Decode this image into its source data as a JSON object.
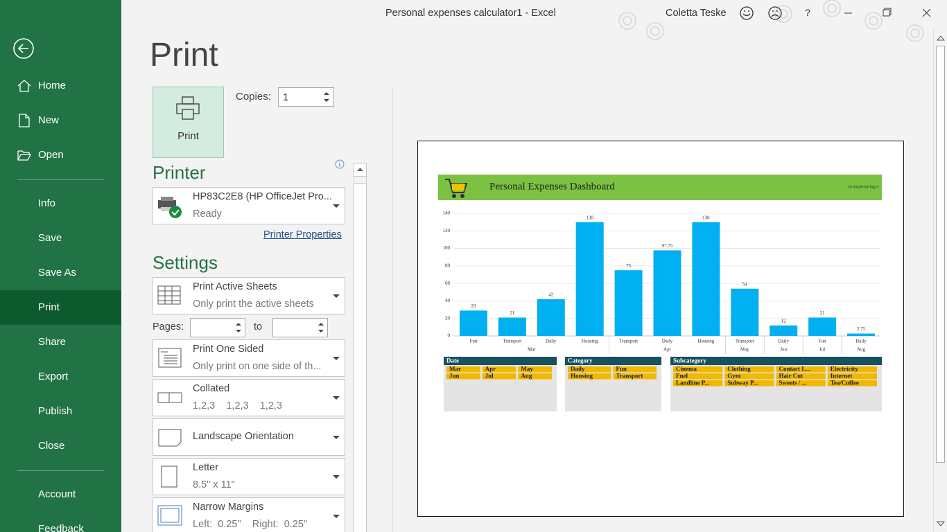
{
  "title_bar": {
    "document": "Personal expenses calculator1  -  Excel",
    "user": "Coletta Teske",
    "help": "?"
  },
  "nav": [
    "Home",
    "New",
    "Open",
    "Info",
    "Save",
    "Save As",
    "Print",
    "Share",
    "Export",
    "Publish",
    "Close",
    "Account",
    "Feedback"
  ],
  "print_panel": {
    "heading": "Print",
    "print_button": "Print",
    "copies": {
      "label": "Copies:",
      "value": 1
    },
    "printer": {
      "heading": "Printer",
      "name": "HP83C2E8 (HP OfficeJet Pro...",
      "status": "Ready",
      "properties_link": "Printer Properties"
    },
    "settings": {
      "heading": "Settings",
      "pages": {
        "label": "Pages:",
        "to": "to"
      },
      "options": [
        {
          "title": "Print Active Sheets",
          "subtitle": "Only print the active sheets"
        },
        {
          "title": "Print One Sided",
          "subtitle": "Only print on one side of th..."
        },
        {
          "title": "Collated",
          "subtitle": "1,2,3    1,2,3    1,2,3"
        },
        {
          "title": "Landscape Orientation"
        },
        {
          "title": "Letter",
          "subtitle": "8.5\" x 11\""
        },
        {
          "title": "Narrow Margins",
          "subtitle": "Left:  0.25\"    Right:  0.25\""
        }
      ]
    }
  },
  "dashboard": {
    "title": "Personal Expenses Dashboard",
    "link": "to expense log >",
    "slicers": [
      {
        "title": "Date",
        "items": [
          "Mar",
          "Apr",
          "May",
          "Jun",
          "Jul",
          "Aug"
        ]
      },
      {
        "title": "Category",
        "items": [
          "Daily",
          "Fun",
          "Housing",
          "Transport"
        ]
      },
      {
        "title": "Subcategory",
        "items": [
          "Cinema",
          "Clothing",
          "Contact L...",
          "Electricity",
          "Fuel",
          "Gym",
          "Hair Cut",
          "Internet",
          "Landline P...",
          "Subway P...",
          "Sweets / ...",
          "Tea/Coffee"
        ]
      }
    ]
  },
  "chart_data": {
    "type": "bar",
    "categories": [
      "Fun",
      "Transport",
      "Daily",
      "Housing",
      "Transport",
      "Daily",
      "Housing",
      "Transport",
      "Daily",
      "Fun",
      "Daily"
    ],
    "group_labels": [
      "Mar",
      null,
      null,
      null,
      "Apr",
      null,
      null,
      "May",
      "Jun",
      "Jul",
      "Aug"
    ],
    "values": [
      29,
      21,
      42,
      130,
      75,
      97.75,
      130,
      54,
      12,
      21,
      2.75
    ],
    "color": "#00b0f0",
    "ylim": [
      0,
      140
    ],
    "yticks": [
      0,
      20,
      40,
      60,
      80,
      100,
      120,
      140
    ],
    "grid": true
  }
}
